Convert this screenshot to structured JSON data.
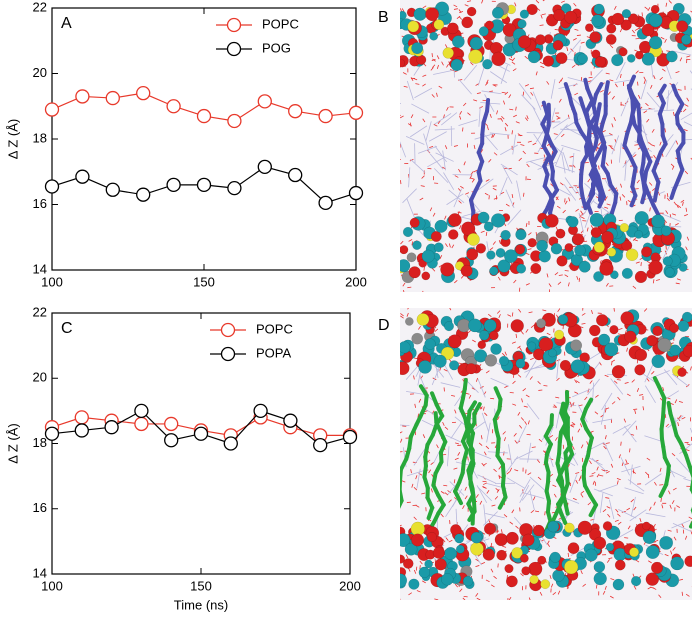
{
  "chart_data": [
    {
      "type": "line",
      "panel": "A",
      "ylabel": "Δ Z (Å)",
      "x": [
        100,
        110,
        120,
        130,
        140,
        150,
        160,
        170,
        180,
        190,
        200
      ],
      "series": [
        {
          "name": "POPC",
          "color": "#e8392b",
          "values": [
            18.9,
            19.3,
            19.25,
            19.4,
            19.0,
            18.7,
            18.55,
            19.15,
            18.85,
            18.7,
            18.8
          ]
        },
        {
          "name": "POG",
          "color": "#000000",
          "values": [
            16.55,
            16.85,
            16.45,
            16.3,
            16.6,
            16.6,
            16.5,
            17.15,
            16.9,
            16.05,
            16.35
          ]
        }
      ],
      "xlim": [
        100,
        200
      ],
      "xticks": [
        100,
        150,
        200
      ],
      "ylim": [
        14,
        22
      ],
      "yticks": [
        14,
        16,
        18,
        20,
        22
      ],
      "legend": "upper right"
    },
    {
      "type": "line",
      "panel": "C",
      "ylabel": "Δ Z (Å)",
      "xlabel": "Time (ns)",
      "x": [
        100,
        110,
        120,
        130,
        140,
        150,
        160,
        170,
        180,
        190,
        200
      ],
      "series": [
        {
          "name": "POPC",
          "color": "#e8392b",
          "values": [
            18.5,
            18.8,
            18.7,
            18.6,
            18.6,
            18.4,
            18.25,
            18.8,
            18.5,
            18.25,
            18.25
          ]
        },
        {
          "name": "POPA",
          "color": "#000000",
          "values": [
            18.3,
            18.4,
            18.5,
            19.0,
            18.1,
            18.3,
            18.0,
            19.0,
            18.7,
            17.95,
            18.2
          ]
        }
      ],
      "xlim": [
        100,
        200
      ],
      "xticks": [
        100,
        150,
        200
      ],
      "ylim": [
        14,
        22
      ],
      "yticks": [
        14,
        16,
        18,
        20,
        22
      ],
      "legend": "upper right"
    }
  ],
  "images": [
    {
      "label": "B"
    },
    {
      "label": "D"
    }
  ]
}
